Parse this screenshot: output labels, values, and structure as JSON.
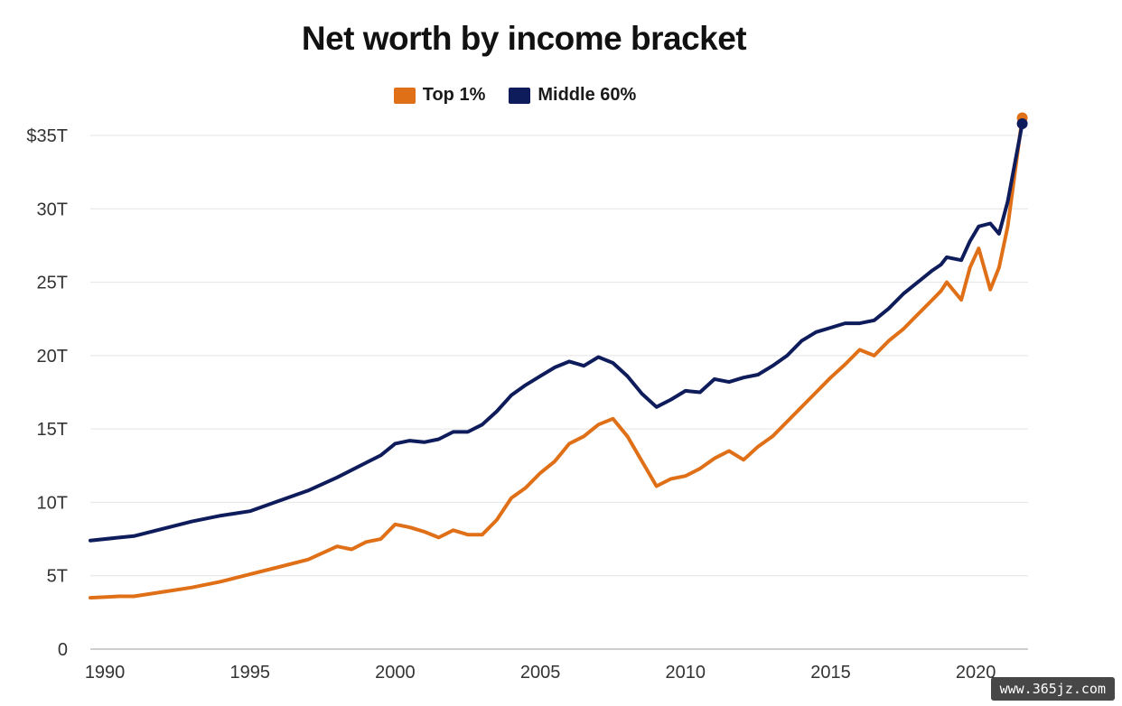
{
  "chart_data": {
    "type": "line",
    "title": "Net worth by income bracket",
    "xlabel": "",
    "ylabel": "",
    "xlim": [
      1989.5,
      2021.8
    ],
    "ylim": [
      0,
      35
    ],
    "y_tick_values": [
      0,
      5,
      10,
      15,
      20,
      25,
      30,
      35
    ],
    "y_tick_labels": [
      "0",
      "5T",
      "10T",
      "15T",
      "20T",
      "25T",
      "30T",
      "$35T"
    ],
    "x_tick_values": [
      1990,
      1995,
      2000,
      2005,
      2010,
      2015,
      2020
    ],
    "x_tick_labels": [
      "1990",
      "1995",
      "2000",
      "2005",
      "2010",
      "2015",
      "2020"
    ],
    "grid": "horizontal",
    "legend_position": "top-center",
    "series": [
      {
        "name": "Top 1%",
        "color": "#E07018",
        "x": [
          1989.5,
          1990.5,
          1991,
          1992,
          1993,
          1994,
          1995,
          1996,
          1997,
          1998,
          1998.5,
          1999,
          1999.5,
          2000,
          2000.5,
          2001,
          2001.5,
          2002,
          2002.5,
          2003,
          2003.5,
          2004,
          2004.5,
          2005,
          2005.5,
          2006,
          2006.5,
          2007,
          2007.5,
          2008,
          2008.5,
          2009,
          2009.5,
          2010,
          2010.5,
          2011,
          2011.5,
          2012,
          2012.5,
          2013,
          2013.5,
          2014,
          2014.5,
          2015,
          2015.5,
          2016,
          2016.5,
          2017,
          2017.5,
          2018,
          2018.5,
          2018.8,
          2019,
          2019.5,
          2019.8,
          2020.1,
          2020.5,
          2020.8,
          2021.1
        ],
        "values": [
          3.5,
          3.6,
          3.6,
          3.9,
          4.2,
          4.6,
          5.1,
          5.6,
          6.1,
          7.0,
          6.8,
          7.3,
          7.5,
          8.5,
          8.3,
          8.0,
          7.6,
          8.1,
          7.8,
          7.8,
          8.8,
          10.3,
          11.0,
          12.0,
          12.8,
          14.0,
          14.5,
          15.3,
          15.7,
          14.5,
          12.8,
          11.1,
          11.6,
          11.8,
          12.3,
          13.0,
          13.5,
          12.9,
          13.8,
          14.5,
          15.5,
          16.5,
          17.5,
          18.5,
          19.4,
          20.4,
          20.0,
          21.0,
          21.8,
          22.8,
          23.8,
          24.4,
          25.0,
          23.8,
          26.0,
          27.3,
          24.5,
          26.0,
          28.8
        ]
      },
      {
        "name": "Middle 60%",
        "color": "#0F1C5C",
        "x": [
          1989.5,
          1990.5,
          1991,
          1992,
          1993,
          1994,
          1995,
          1996,
          1997,
          1998,
          1998.5,
          1999,
          1999.5,
          2000,
          2000.5,
          2001,
          2001.5,
          2002,
          2002.5,
          2003,
          2003.5,
          2004,
          2004.5,
          2005,
          2005.5,
          2006,
          2006.5,
          2007,
          2007.5,
          2008,
          2008.5,
          2009,
          2009.5,
          2010,
          2010.5,
          2011,
          2011.5,
          2012,
          2012.5,
          2013,
          2013.5,
          2014,
          2014.5,
          2015,
          2015.5,
          2016,
          2016.5,
          2017,
          2017.5,
          2018,
          2018.5,
          2018.8,
          2019,
          2019.5,
          2019.8,
          2020.1,
          2020.5,
          2020.8,
          2021.1
        ],
        "values": [
          7.4,
          7.6,
          7.7,
          8.2,
          8.7,
          9.1,
          9.4,
          10.1,
          10.8,
          11.7,
          12.2,
          12.7,
          13.2,
          14.0,
          14.2,
          14.1,
          14.3,
          14.8,
          14.8,
          15.3,
          16.2,
          17.3,
          18.0,
          18.6,
          19.2,
          19.6,
          19.3,
          19.9,
          19.5,
          18.6,
          17.4,
          16.5,
          17.0,
          17.6,
          17.5,
          18.4,
          18.2,
          18.5,
          18.7,
          19.3,
          20.0,
          21.0,
          21.6,
          21.9,
          22.2,
          22.2,
          22.4,
          23.2,
          24.2,
          25.0,
          25.8,
          26.2,
          26.7,
          26.5,
          27.8,
          28.8,
          29.0,
          28.3,
          30.5
        ]
      }
    ],
    "end_points": [
      {
        "series": "Top 1%",
        "x": 2021.6,
        "value": 36.2
      },
      {
        "series": "Middle 60%",
        "x": 2021.6,
        "value": 35.8
      }
    ]
  },
  "watermark": "www.365jz.com"
}
